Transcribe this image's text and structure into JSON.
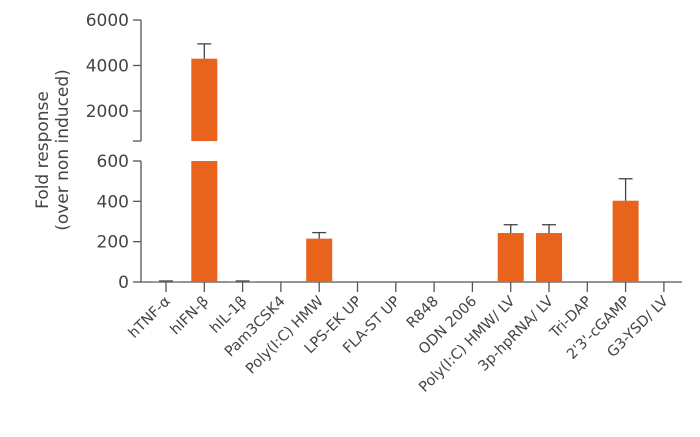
{
  "chart_data": {
    "type": "bar",
    "ylabel": [
      "Fold response",
      "(over non induced)"
    ],
    "xlabel": "",
    "axis_break": true,
    "upper_ylim": [
      680,
      6000
    ],
    "upper_ticks": [
      "2000",
      "4000",
      "6000"
    ],
    "upper_tick_values": [
      2000,
      4000,
      6000
    ],
    "lower_ylim": [
      0,
      600
    ],
    "lower_ticks": [
      "0",
      "200",
      "400",
      "600"
    ],
    "lower_tick_values": [
      0,
      200,
      400,
      600
    ],
    "categories": [
      "hTNF-α",
      "hIFN-β",
      "hIL-1β",
      "Pam3CSK4",
      "Poly(I:C) HMW",
      "LPS-EK UP",
      "FLA-ST UP",
      "R848",
      "ODN 2006",
      "Poly(I:C) HMW/ LV",
      "3p-hpRNA/ LV",
      "Tri-DAP",
      "2'3'-cGAMP",
      "G3-YSD/ LV"
    ],
    "values": [
      3,
      4300,
      3,
      0,
      215,
      0,
      0,
      0,
      0,
      243,
      243,
      0,
      403,
      0
    ],
    "error_upper": [
      3,
      4950,
      3,
      0,
      245,
      0,
      0,
      0,
      0,
      284,
      284,
      0,
      512,
      0
    ],
    "bar_color": "#E8631C",
    "axis_color": "#555555",
    "grid": false,
    "legend": "none"
  }
}
